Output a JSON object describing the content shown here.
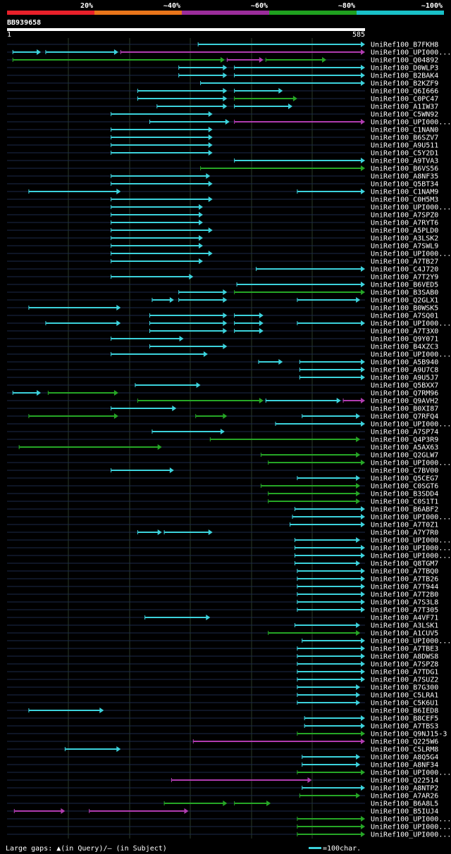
{
  "chart_data": {
    "type": "alignment-map",
    "query_id": "BB939658",
    "query_length": 585,
    "ruler_start": "1",
    "ruler_end": "585",
    "identity_legend": [
      {
        "label": "20%",
        "color": "#e8202a"
      },
      {
        "label": "~40%",
        "color": "#e8751a"
      },
      {
        "label": "~60%",
        "color": "#9b2d9b"
      },
      {
        "label": "~80%",
        "color": "#1fa01f"
      },
      {
        "label": "~100%",
        "color": "#19c0c8"
      }
    ],
    "colors": {
      "magenta": "#b03cb0",
      "green": "#26a626",
      "cyan": "#3cd2dc",
      "dim_line": "#1c2a4a",
      "grid": "#2a3a2a"
    },
    "footer": {
      "gaps_text": "Large gaps: ▲(in Query)/– (in Subject)",
      "scale_text": "=100char."
    },
    "rows": [
      {
        "label": "UniRef100_B7FKH8",
        "segs": [
          [
            395,
            740,
            "cyan"
          ]
        ]
      },
      {
        "label": "UniRef100_UPI000...",
        "segs": [
          [
            12,
            70,
            "cyan"
          ],
          [
            80,
            230,
            "cyan"
          ],
          [
            235,
            740,
            "magenta"
          ]
        ]
      },
      {
        "label": "UniRef100_Q04892",
        "segs": [
          [
            12,
            450,
            "green"
          ],
          [
            455,
            530,
            "magenta"
          ],
          [
            535,
            660,
            "green"
          ]
        ]
      },
      {
        "label": "UniRef100_D0WLP3",
        "segs": [
          [
            355,
            455,
            "cyan"
          ],
          [
            470,
            740,
            "cyan"
          ]
        ]
      },
      {
        "label": "UniRef100_B2BAK4",
        "segs": [
          [
            355,
            455,
            "cyan"
          ],
          [
            470,
            740,
            "cyan"
          ]
        ]
      },
      {
        "label": "UniRef100_B2KZF9",
        "segs": [
          [
            400,
            740,
            "cyan"
          ]
        ]
      },
      {
        "label": "UniRef100_Q6I666",
        "segs": [
          [
            270,
            455,
            "cyan"
          ],
          [
            470,
            570,
            "cyan"
          ]
        ]
      },
      {
        "label": "UniRef100_C0PC47",
        "segs": [
          [
            270,
            455,
            "cyan"
          ],
          [
            470,
            600,
            "green"
          ]
        ]
      },
      {
        "label": "UniRef100_A1IW37",
        "segs": [
          [
            310,
            455,
            "cyan"
          ],
          [
            470,
            590,
            "cyan"
          ]
        ]
      },
      {
        "label": "UniRef100_C5WN92",
        "segs": [
          [
            215,
            425,
            "cyan"
          ]
        ]
      },
      {
        "label": "UniRef100_UPI000...",
        "segs": [
          [
            295,
            460,
            "cyan"
          ],
          [
            470,
            740,
            "magenta"
          ]
        ]
      },
      {
        "label": "UniRef100_C1NAN0",
        "segs": [
          [
            215,
            425,
            "cyan"
          ]
        ]
      },
      {
        "label": "UniRef100_B6SZV7",
        "segs": [
          [
            215,
            425,
            "cyan"
          ]
        ]
      },
      {
        "label": "UniRef100_A9U511",
        "segs": [
          [
            215,
            425,
            "cyan"
          ]
        ]
      },
      {
        "label": "UniRef100_C5Y2D1",
        "segs": [
          [
            215,
            425,
            "cyan"
          ]
        ]
      },
      {
        "label": "UniRef100_A9TVA3",
        "segs": [
          [
            470,
            740,
            "cyan"
          ]
        ]
      },
      {
        "label": "UniRef100_B6VS56",
        "segs": [
          [
            400,
            740,
            "green"
          ]
        ]
      },
      {
        "label": "UniRef100_A8NF35",
        "segs": [
          [
            215,
            420,
            "cyan"
          ]
        ]
      },
      {
        "label": "UniRef100_Q5BT34",
        "segs": [
          [
            215,
            425,
            "cyan"
          ]
        ]
      },
      {
        "label": "UniRef100_C1NAM9",
        "segs": [
          [
            45,
            235,
            "cyan"
          ],
          [
            600,
            740,
            "cyan"
          ]
        ]
      },
      {
        "label": "UniRef100_C0H5M3",
        "segs": [
          [
            215,
            425,
            "cyan"
          ]
        ]
      },
      {
        "label": "UniRef100_UPI000...",
        "segs": [
          [
            215,
            405,
            "cyan"
          ]
        ]
      },
      {
        "label": "UniRef100_A7SPZ0",
        "segs": [
          [
            215,
            405,
            "cyan"
          ]
        ]
      },
      {
        "label": "UniRef100_A7RYT6",
        "segs": [
          [
            215,
            405,
            "cyan"
          ]
        ]
      },
      {
        "label": "UniRef100_A5PLD0",
        "segs": [
          [
            215,
            425,
            "cyan"
          ]
        ]
      },
      {
        "label": "UniRef100_A3LSK2",
        "segs": [
          [
            215,
            405,
            "cyan"
          ]
        ]
      },
      {
        "label": "UniRef100_A7SWL9",
        "segs": [
          [
            215,
            405,
            "cyan"
          ]
        ]
      },
      {
        "label": "UniRef100_UPI000...",
        "segs": [
          [
            215,
            425,
            "cyan"
          ]
        ]
      },
      {
        "label": "UniRef100_A7TB27",
        "segs": [
          [
            215,
            405,
            "cyan"
          ]
        ]
      },
      {
        "label": "UniRef100_C4J720",
        "segs": [
          [
            515,
            740,
            "cyan"
          ]
        ]
      },
      {
        "label": "UniRef100_A7T2Y9",
        "segs": [
          [
            215,
            385,
            "cyan"
          ]
        ]
      },
      {
        "label": "UniRef100_B6VED5",
        "segs": [
          [
            475,
            740,
            "cyan"
          ]
        ]
      },
      {
        "label": "UniRef100_B3SAB0",
        "segs": [
          [
            355,
            455,
            "cyan"
          ],
          [
            470,
            740,
            "green"
          ]
        ]
      },
      {
        "label": "UniRef100_Q2GLX1",
        "segs": [
          [
            300,
            345,
            "cyan"
          ],
          [
            355,
            455,
            "cyan"
          ],
          [
            600,
            730,
            "cyan"
          ]
        ]
      },
      {
        "label": "UniRef100_B0WSK5",
        "segs": [
          [
            45,
            235,
            "cyan"
          ]
        ]
      },
      {
        "label": "UniRef100_A7SQ01",
        "segs": [
          [
            295,
            455,
            "cyan"
          ],
          [
            470,
            530,
            "cyan"
          ]
        ]
      },
      {
        "label": "UniRef100_UPI000...",
        "segs": [
          [
            80,
            235,
            "cyan"
          ],
          [
            295,
            455,
            "cyan"
          ],
          [
            470,
            530,
            "cyan"
          ],
          [
            600,
            740,
            "cyan"
          ]
        ]
      },
      {
        "label": "UniRef100_A7T3X0",
        "segs": [
          [
            295,
            455,
            "cyan"
          ],
          [
            470,
            530,
            "cyan"
          ]
        ]
      },
      {
        "label": "UniRef100_Q9Y071",
        "segs": [
          [
            215,
            365,
            "cyan"
          ]
        ]
      },
      {
        "label": "UniRef100_B4XZC3",
        "segs": [
          [
            295,
            455,
            "cyan"
          ]
        ]
      },
      {
        "label": "UniRef100_UPI000...",
        "segs": [
          [
            215,
            415,
            "cyan"
          ]
        ]
      },
      {
        "label": "UniRef100_A5B940",
        "segs": [
          [
            520,
            570,
            "cyan"
          ],
          [
            605,
            740,
            "cyan"
          ]
        ]
      },
      {
        "label": "UniRef100_A9U7C8",
        "segs": [
          [
            605,
            740,
            "cyan"
          ]
        ]
      },
      {
        "label": "UniRef100_A9U5J7",
        "segs": [
          [
            605,
            740,
            "cyan"
          ]
        ]
      },
      {
        "label": "UniRef100_Q5BXX7",
        "segs": [
          [
            265,
            400,
            "cyan"
          ]
        ]
      },
      {
        "label": "UniRef100_Q7RM96",
        "segs": [
          [
            12,
            70,
            "cyan"
          ],
          [
            85,
            230,
            "green"
          ]
        ]
      },
      {
        "label": "UniRef100_Q9AVH2",
        "segs": [
          [
            270,
            530,
            "green"
          ],
          [
            535,
            690,
            "cyan"
          ],
          [
            695,
            740,
            "magenta"
          ]
        ]
      },
      {
        "label": "UniRef100_B0XI87",
        "segs": [
          [
            215,
            350,
            "cyan"
          ]
        ]
      },
      {
        "label": "UniRef100_Q7RFQ4",
        "segs": [
          [
            45,
            230,
            "green"
          ],
          [
            390,
            455,
            "green"
          ],
          [
            610,
            730,
            "cyan"
          ]
        ]
      },
      {
        "label": "UniRef100_UPI000...",
        "segs": [
          [
            555,
            740,
            "cyan"
          ]
        ]
      },
      {
        "label": "UniRef100_A7SP74",
        "segs": [
          [
            300,
            450,
            "cyan"
          ]
        ]
      },
      {
        "label": "UniRef100_Q4P3R9",
        "segs": [
          [
            420,
            730,
            "green"
          ]
        ]
      },
      {
        "label": "UniRef100_A5AX63",
        "segs": [
          [
            25,
            320,
            "green"
          ]
        ]
      },
      {
        "label": "UniRef100_Q2GLW7",
        "segs": [
          [
            525,
            730,
            "green"
          ]
        ]
      },
      {
        "label": "UniRef100_UPI000...",
        "segs": [
          [
            540,
            740,
            "green"
          ]
        ]
      },
      {
        "label": "UniRef100_C7BV00",
        "segs": [
          [
            215,
            345,
            "cyan"
          ]
        ]
      },
      {
        "label": "UniRef100_Q5CEG7",
        "segs": [
          [
            600,
            730,
            "cyan"
          ]
        ]
      },
      {
        "label": "UniRef100_C0SGT6",
        "segs": [
          [
            525,
            730,
            "green"
          ]
        ]
      },
      {
        "label": "UniRef100_B3SDD4",
        "segs": [
          [
            540,
            730,
            "green"
          ]
        ]
      },
      {
        "label": "UniRef100_C0S1T1",
        "segs": [
          [
            540,
            730,
            "green"
          ]
        ]
      },
      {
        "label": "UniRef100_B6ABF2",
        "segs": [
          [
            595,
            740,
            "cyan"
          ]
        ]
      },
      {
        "label": "UniRef100_UPI000...",
        "segs": [
          [
            590,
            740,
            "cyan"
          ]
        ]
      },
      {
        "label": "UniRef100_A7T0Z1",
        "segs": [
          [
            585,
            740,
            "cyan"
          ]
        ]
      },
      {
        "label": "UniRef100_A7Y7R0",
        "segs": [
          [
            270,
            320,
            "cyan"
          ],
          [
            325,
            425,
            "cyan"
          ]
        ]
      },
      {
        "label": "UniRef100_UPI000...",
        "segs": [
          [
            595,
            730,
            "cyan"
          ]
        ]
      },
      {
        "label": "UniRef100_UPI000...",
        "segs": [
          [
            595,
            740,
            "cyan"
          ]
        ]
      },
      {
        "label": "UniRef100_UPI000...",
        "segs": [
          [
            595,
            740,
            "cyan"
          ]
        ]
      },
      {
        "label": "UniRef100_Q8TGM7",
        "segs": [
          [
            595,
            730,
            "cyan"
          ]
        ]
      },
      {
        "label": "UniRef100_A7TBQ0",
        "segs": [
          [
            600,
            740,
            "cyan"
          ]
        ]
      },
      {
        "label": "UniRef100_A7TB26",
        "segs": [
          [
            600,
            740,
            "cyan"
          ]
        ]
      },
      {
        "label": "UniRef100_A7T944",
        "segs": [
          [
            600,
            740,
            "cyan"
          ]
        ]
      },
      {
        "label": "UniRef100_A7T2B0",
        "segs": [
          [
            600,
            740,
            "cyan"
          ]
        ]
      },
      {
        "label": "UniRef100_A7S3L8",
        "segs": [
          [
            600,
            740,
            "cyan"
          ]
        ]
      },
      {
        "label": "UniRef100_A7T305",
        "segs": [
          [
            600,
            740,
            "cyan"
          ]
        ]
      },
      {
        "label": "UniRef100_A4VF71",
        "segs": [
          [
            285,
            420,
            "cyan"
          ]
        ]
      },
      {
        "label": "UniRef100_A3LSK1",
        "segs": [
          [
            595,
            730,
            "cyan"
          ]
        ]
      },
      {
        "label": "UniRef100_A1CUV5",
        "segs": [
          [
            540,
            730,
            "green"
          ]
        ]
      },
      {
        "label": "UniRef100_UPI000...",
        "segs": [
          [
            610,
            740,
            "cyan"
          ]
        ]
      },
      {
        "label": "UniRef100_A7TBE3",
        "segs": [
          [
            600,
            740,
            "cyan"
          ]
        ]
      },
      {
        "label": "UniRef100_A8DWS8",
        "segs": [
          [
            600,
            740,
            "cyan"
          ]
        ]
      },
      {
        "label": "UniRef100_A7SPZ8",
        "segs": [
          [
            600,
            740,
            "cyan"
          ]
        ]
      },
      {
        "label": "UniRef100_A7TDG1",
        "segs": [
          [
            600,
            740,
            "cyan"
          ]
        ]
      },
      {
        "label": "UniRef100_A7SUZ2",
        "segs": [
          [
            600,
            740,
            "cyan"
          ]
        ]
      },
      {
        "label": "UniRef100_B7G300",
        "segs": [
          [
            600,
            730,
            "cyan"
          ]
        ]
      },
      {
        "label": "UniRef100_C5LRA1",
        "segs": [
          [
            600,
            730,
            "cyan"
          ]
        ]
      },
      {
        "label": "UniRef100_C5K6U1",
        "segs": [
          [
            600,
            730,
            "cyan"
          ]
        ]
      },
      {
        "label": "UniRef100_B6IED8",
        "segs": [
          [
            45,
            200,
            "cyan"
          ]
        ]
      },
      {
        "label": "UniRef100_B8CEF5",
        "segs": [
          [
            615,
            740,
            "cyan"
          ]
        ]
      },
      {
        "label": "UniRef100_A7TBS3",
        "segs": [
          [
            615,
            740,
            "cyan"
          ]
        ]
      },
      {
        "label": "UniRef100_Q9NJ15-3",
        "segs": [
          [
            600,
            740,
            "green"
          ]
        ]
      },
      {
        "label": "UniRef100_Q225W6",
        "segs": [
          [
            385,
            740,
            "magenta"
          ]
        ]
      },
      {
        "label": "UniRef100_C5LRM8",
        "segs": [
          [
            120,
            235,
            "cyan"
          ]
        ]
      },
      {
        "label": "UniRef100_A8Q5G4",
        "segs": [
          [
            610,
            730,
            "cyan"
          ]
        ]
      },
      {
        "label": "UniRef100_A8NF34",
        "segs": [
          [
            610,
            730,
            "cyan"
          ]
        ]
      },
      {
        "label": "UniRef100_UPI000...",
        "segs": [
          [
            600,
            740,
            "green"
          ]
        ]
      },
      {
        "label": "UniRef100_Q22514",
        "segs": [
          [
            340,
            630,
            "magenta"
          ]
        ]
      },
      {
        "label": "UniRef100_A8NTP2",
        "segs": [
          [
            610,
            740,
            "cyan"
          ]
        ]
      },
      {
        "label": "UniRef100_A7AR26",
        "segs": [
          [
            605,
            730,
            "green"
          ]
        ]
      },
      {
        "label": "UniRef100_B6A8L5",
        "segs": [
          [
            325,
            455,
            "green"
          ],
          [
            470,
            545,
            "green"
          ]
        ]
      },
      {
        "label": "UniRef100_B5IUJ4",
        "segs": [
          [
            15,
            120,
            "magenta"
          ],
          [
            170,
            375,
            "magenta"
          ]
        ]
      },
      {
        "label": "UniRef100_UPI000...",
        "segs": [
          [
            600,
            740,
            "green"
          ]
        ]
      },
      {
        "label": "UniRef100_UPI000...",
        "segs": [
          [
            600,
            740,
            "green"
          ]
        ]
      },
      {
        "label": "UniRef100_UPI000...",
        "segs": [
          [
            600,
            740,
            "green"
          ]
        ]
      }
    ]
  }
}
